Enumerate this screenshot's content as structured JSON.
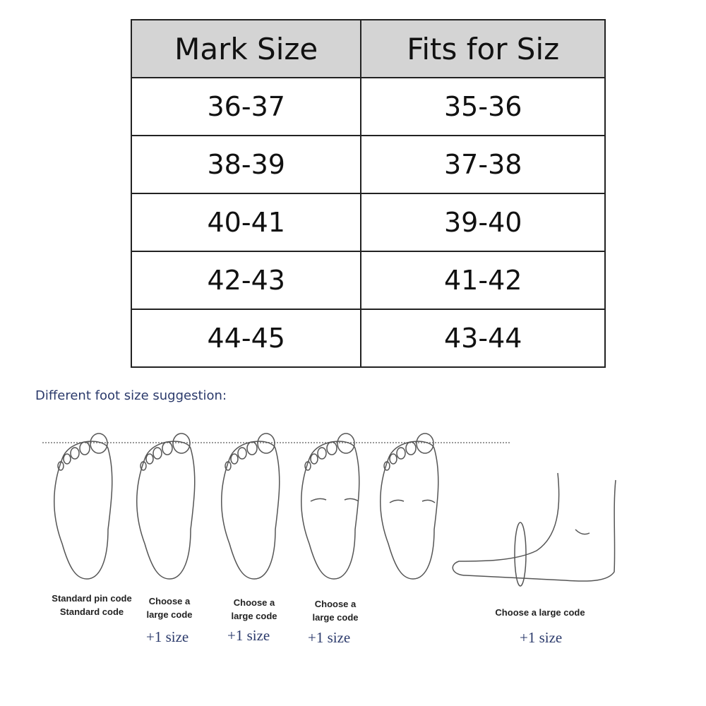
{
  "size_table": {
    "headers": [
      "Mark Size",
      "Fits for Siz"
    ],
    "rows": [
      [
        "36-37",
        "35-36"
      ],
      [
        "38-39",
        "37-38"
      ],
      [
        "40-41",
        "39-40"
      ],
      [
        "42-43",
        "41-42"
      ],
      [
        "44-45",
        "43-44"
      ]
    ],
    "header_bg": "#d4d4d4"
  },
  "suggestion": {
    "title": "Different foot size suggestion:",
    "feet": [
      {
        "line1": "Standard pin code",
        "line2": "Standard code",
        "extra": ""
      },
      {
        "line1": "Choose a",
        "line2": "large code",
        "extra": "+1 size"
      },
      {
        "line1": "Choose a",
        "line2": "large code",
        "extra": "+1 size"
      },
      {
        "line1": "Choose a",
        "line2": "large code",
        "extra": "+1 size"
      }
    ],
    "side_foot": {
      "label": "Choose a large code",
      "extra": "+1 size"
    }
  }
}
